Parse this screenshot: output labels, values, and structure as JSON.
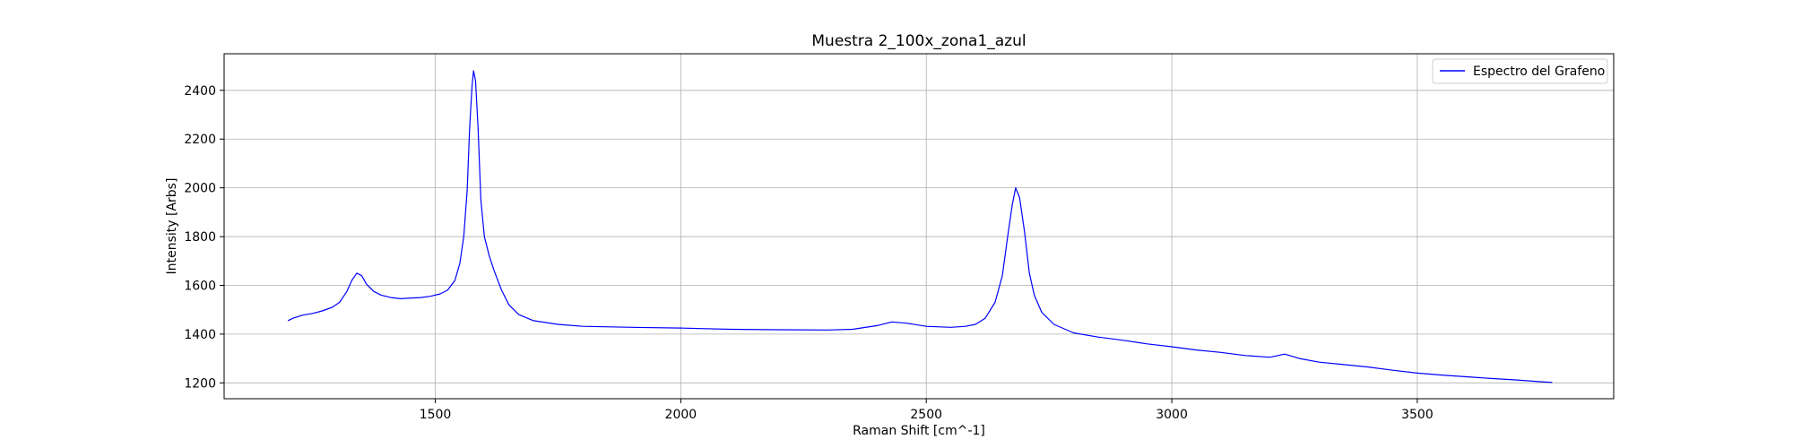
{
  "chart_data": {
    "type": "line",
    "title": "Muestra 2_100x_zona1_azul",
    "xlabel": "Raman Shift [cm^-1]",
    "ylabel": "Intensity [Arbs]",
    "xlim": [
      1070,
      3900
    ],
    "ylim": [
      1135,
      2550
    ],
    "xticks": [
      1500,
      2000,
      2500,
      3000,
      3500
    ],
    "yticks": [
      1200,
      1400,
      1600,
      1800,
      2000,
      2200,
      2400
    ],
    "grid": true,
    "legend_position": "top-right",
    "series": [
      {
        "name": "Espectro del Grafeno",
        "color": "#0000ff",
        "points": [
          [
            1200,
            1455
          ],
          [
            1210,
            1465
          ],
          [
            1230,
            1478
          ],
          [
            1250,
            1485
          ],
          [
            1270,
            1495
          ],
          [
            1290,
            1510
          ],
          [
            1305,
            1530
          ],
          [
            1320,
            1575
          ],
          [
            1330,
            1620
          ],
          [
            1340,
            1650
          ],
          [
            1350,
            1640
          ],
          [
            1360,
            1605
          ],
          [
            1375,
            1575
          ],
          [
            1390,
            1560
          ],
          [
            1410,
            1550
          ],
          [
            1430,
            1545
          ],
          [
            1450,
            1548
          ],
          [
            1470,
            1550
          ],
          [
            1490,
            1555
          ],
          [
            1510,
            1565
          ],
          [
            1525,
            1580
          ],
          [
            1540,
            1620
          ],
          [
            1550,
            1690
          ],
          [
            1558,
            1800
          ],
          [
            1565,
            1990
          ],
          [
            1570,
            2250
          ],
          [
            1575,
            2420
          ],
          [
            1578,
            2480
          ],
          [
            1582,
            2440
          ],
          [
            1587,
            2250
          ],
          [
            1593,
            1950
          ],
          [
            1600,
            1800
          ],
          [
            1610,
            1720
          ],
          [
            1620,
            1660
          ],
          [
            1635,
            1580
          ],
          [
            1650,
            1520
          ],
          [
            1670,
            1480
          ],
          [
            1700,
            1455
          ],
          [
            1750,
            1440
          ],
          [
            1800,
            1432
          ],
          [
            1900,
            1428
          ],
          [
            2000,
            1425
          ],
          [
            2100,
            1420
          ],
          [
            2200,
            1418
          ],
          [
            2300,
            1417
          ],
          [
            2350,
            1420
          ],
          [
            2400,
            1435
          ],
          [
            2430,
            1450
          ],
          [
            2460,
            1445
          ],
          [
            2500,
            1432
          ],
          [
            2550,
            1428
          ],
          [
            2580,
            1432
          ],
          [
            2600,
            1440
          ],
          [
            2620,
            1465
          ],
          [
            2640,
            1530
          ],
          [
            2655,
            1640
          ],
          [
            2665,
            1790
          ],
          [
            2675,
            1930
          ],
          [
            2682,
            2000
          ],
          [
            2690,
            1960
          ],
          [
            2700,
            1820
          ],
          [
            2710,
            1650
          ],
          [
            2720,
            1560
          ],
          [
            2735,
            1490
          ],
          [
            2760,
            1440
          ],
          [
            2800,
            1405
          ],
          [
            2850,
            1388
          ],
          [
            2900,
            1375
          ],
          [
            2950,
            1360
          ],
          [
            3000,
            1348
          ],
          [
            3050,
            1335
          ],
          [
            3100,
            1325
          ],
          [
            3150,
            1312
          ],
          [
            3200,
            1305
          ],
          [
            3230,
            1318
          ],
          [
            3260,
            1300
          ],
          [
            3300,
            1285
          ],
          [
            3350,
            1275
          ],
          [
            3400,
            1265
          ],
          [
            3450,
            1252
          ],
          [
            3500,
            1240
          ],
          [
            3550,
            1232
          ],
          [
            3600,
            1225
          ],
          [
            3650,
            1218
          ],
          [
            3700,
            1212
          ],
          [
            3750,
            1205
          ],
          [
            3775,
            1202
          ]
        ]
      }
    ]
  }
}
